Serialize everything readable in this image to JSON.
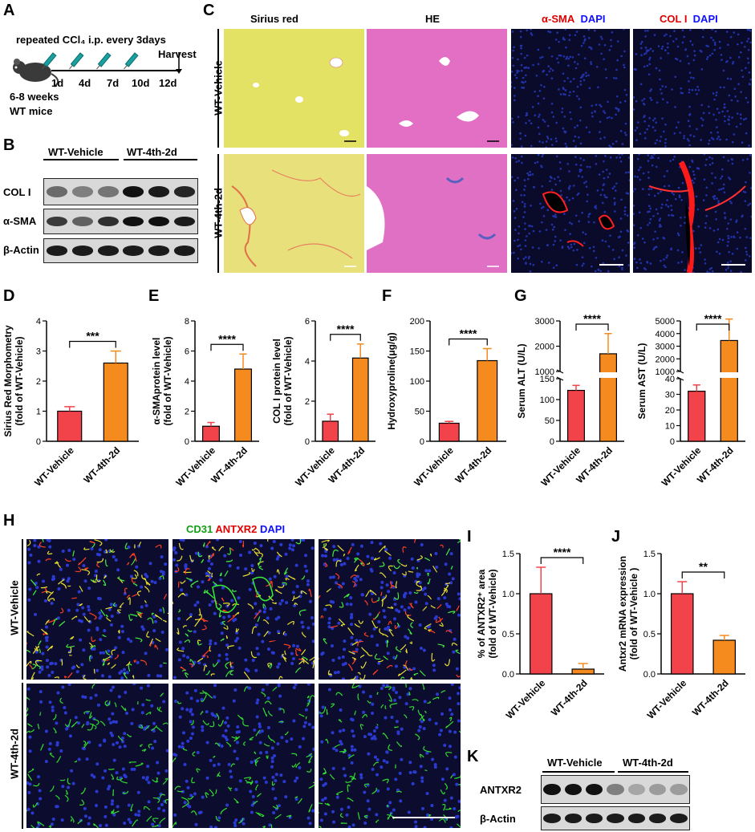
{
  "panels": {
    "A": {
      "letter": "A",
      "title": "repeated CCl₄ i.p. every 3days",
      "harvest": "Harvest",
      "days": [
        "1d",
        "4d",
        "7d",
        "10d",
        "12d"
      ],
      "mouse_line1": "6-8 weeks",
      "mouse_line2": "WT mice"
    },
    "B": {
      "letter": "B",
      "groups": [
        "WT-Vehicle",
        "WT-4th-2d"
      ],
      "rows": [
        "COL I",
        "α-SMA",
        "β-Actin"
      ],
      "band_intensity": {
        "COL I": [
          0.55,
          0.45,
          0.5,
          1.0,
          0.95,
          0.9
        ],
        "α-SMA": [
          0.8,
          0.6,
          0.85,
          1.0,
          1.0,
          0.95
        ],
        "β-Actin": [
          0.95,
          0.95,
          0.95,
          0.95,
          0.95,
          0.95
        ]
      }
    },
    "C": {
      "letter": "C",
      "columns": [
        "Sirius red",
        "HE"
      ],
      "col3_a": "α-SMA",
      "col3_b": "DAPI",
      "col4_a": "COL I",
      "col4_b": "DAPI",
      "rows": [
        "WT-Vehicle",
        "WT-4th-2d"
      ]
    },
    "D": {
      "letter": "D"
    },
    "E": {
      "letter": "E"
    },
    "F": {
      "letter": "F"
    },
    "G": {
      "letter": "G"
    },
    "H": {
      "letter": "H",
      "stain_a": "CD31",
      "stain_b": "ANTXR2",
      "stain_c": "DAPI",
      "rows": [
        "WT-Vehicle",
        "WT-4th-2d"
      ]
    },
    "I": {
      "letter": "I"
    },
    "J": {
      "letter": "J"
    },
    "K": {
      "letter": "K",
      "groups": [
        "WT-Vehicle",
        "WT-4th-2d"
      ],
      "rows": [
        "ANTXR2",
        "β-Actin"
      ],
      "band_intensity": {
        "ANTXR2": [
          1.0,
          1.0,
          1.0,
          0.45,
          0.25,
          0.3,
          0.3
        ],
        "β-Actin": [
          0.95,
          0.95,
          0.95,
          0.95,
          0.95,
          0.95,
          0.95
        ]
      }
    }
  },
  "colors": {
    "vehicle": "#f2424a",
    "treatment": "#f58a1f",
    "sirius_bg": "#e3e060",
    "he_bg": "#e772c6",
    "fluor_bg": "#0a0a2a"
  },
  "chart_data": [
    {
      "id": "D",
      "type": "bar",
      "categories": [
        "WT-Vehicle",
        "WT-4th-2d"
      ],
      "values": [
        1.0,
        2.6
      ],
      "errors": [
        0.15,
        0.4
      ],
      "ylabel": "Sirius Red Morphometry\n(fold of WT-Vehicle)",
      "ylim": [
        0,
        4
      ],
      "yticks": [
        0,
        1,
        2,
        3,
        4
      ],
      "significance": "***"
    },
    {
      "id": "E1",
      "type": "bar",
      "categories": [
        "WT-Vehicle",
        "WT-4th-2d"
      ],
      "values": [
        1.0,
        4.8
      ],
      "errors": [
        0.25,
        1.0
      ],
      "ylabel": "α-SMAprotein level\n(fold of WT-Vehicle)",
      "ylim": [
        0,
        8
      ],
      "yticks": [
        0,
        2,
        4,
        6,
        8
      ],
      "significance": "****"
    },
    {
      "id": "E2",
      "type": "bar",
      "categories": [
        "WT-Vehicle",
        "WT-4th-2d"
      ],
      "values": [
        1.0,
        4.15
      ],
      "errors": [
        0.35,
        0.7
      ],
      "ylabel": "COL I protein level\n(fold of WT-Vehicle)",
      "ylim": [
        0,
        6
      ],
      "yticks": [
        0,
        2,
        4,
        6
      ],
      "significance": "****"
    },
    {
      "id": "F",
      "type": "bar",
      "categories": [
        "WT-Vehicle",
        "WT-4th-2d"
      ],
      "values": [
        30,
        134
      ],
      "errors": [
        3,
        20
      ],
      "ylabel": "Hydroxyproline(μg/g)",
      "ylim": [
        0,
        200
      ],
      "yticks": [
        0,
        50,
        100,
        150,
        200
      ],
      "significance": "****"
    },
    {
      "id": "G1",
      "type": "bar",
      "broken_axis": true,
      "categories": [
        "WT-Vehicle",
        "WT-4th-2d"
      ],
      "values": [
        122,
        1700
      ],
      "errors": [
        12,
        800
      ],
      "ylabel": "Serum ALT (U/L)",
      "ylim_lower": [
        0,
        150
      ],
      "yticks_lower": [
        0,
        50,
        100,
        150
      ],
      "ylim_upper": [
        1000,
        3000
      ],
      "yticks_upper": [
        1000,
        2000,
        3000
      ],
      "significance": "****"
    },
    {
      "id": "G2",
      "type": "bar",
      "broken_axis": true,
      "categories": [
        "WT-Vehicle",
        "WT-4th-2d"
      ],
      "values": [
        32,
        3450
      ],
      "errors": [
        4,
        1700
      ],
      "ylabel": "Serum AST (U/L)",
      "ylim_lower": [
        0,
        40
      ],
      "yticks_lower": [
        0,
        10,
        20,
        30,
        40
      ],
      "ylim_upper": [
        1000,
        5000
      ],
      "yticks_upper": [
        1000,
        2000,
        3000,
        4000,
        5000
      ],
      "significance": "****"
    },
    {
      "id": "I",
      "type": "bar",
      "categories": [
        "WT-Vehicle",
        "WT-4th-2d"
      ],
      "values": [
        1.0,
        0.06
      ],
      "errors": [
        0.33,
        0.07
      ],
      "ylabel": "% of ANTXR2⁺ area\n(fold of WT-Vehicle)",
      "ylim": [
        0,
        1.5
      ],
      "yticks": [
        "0.0",
        "0.5",
        "1.0",
        "1.5"
      ],
      "significance": "****"
    },
    {
      "id": "J",
      "type": "bar",
      "categories": [
        "WT-Vehicle",
        "WT-4th-2d"
      ],
      "values": [
        1.0,
        0.42
      ],
      "errors": [
        0.15,
        0.06
      ],
      "ylabel": "Antxr2 mRNA expression\n(fold of WT-Vehicle )",
      "ylim": [
        0,
        1.5
      ],
      "yticks": [
        "0.0",
        "0.5",
        "1.0",
        "1.5"
      ],
      "significance": "**"
    }
  ]
}
